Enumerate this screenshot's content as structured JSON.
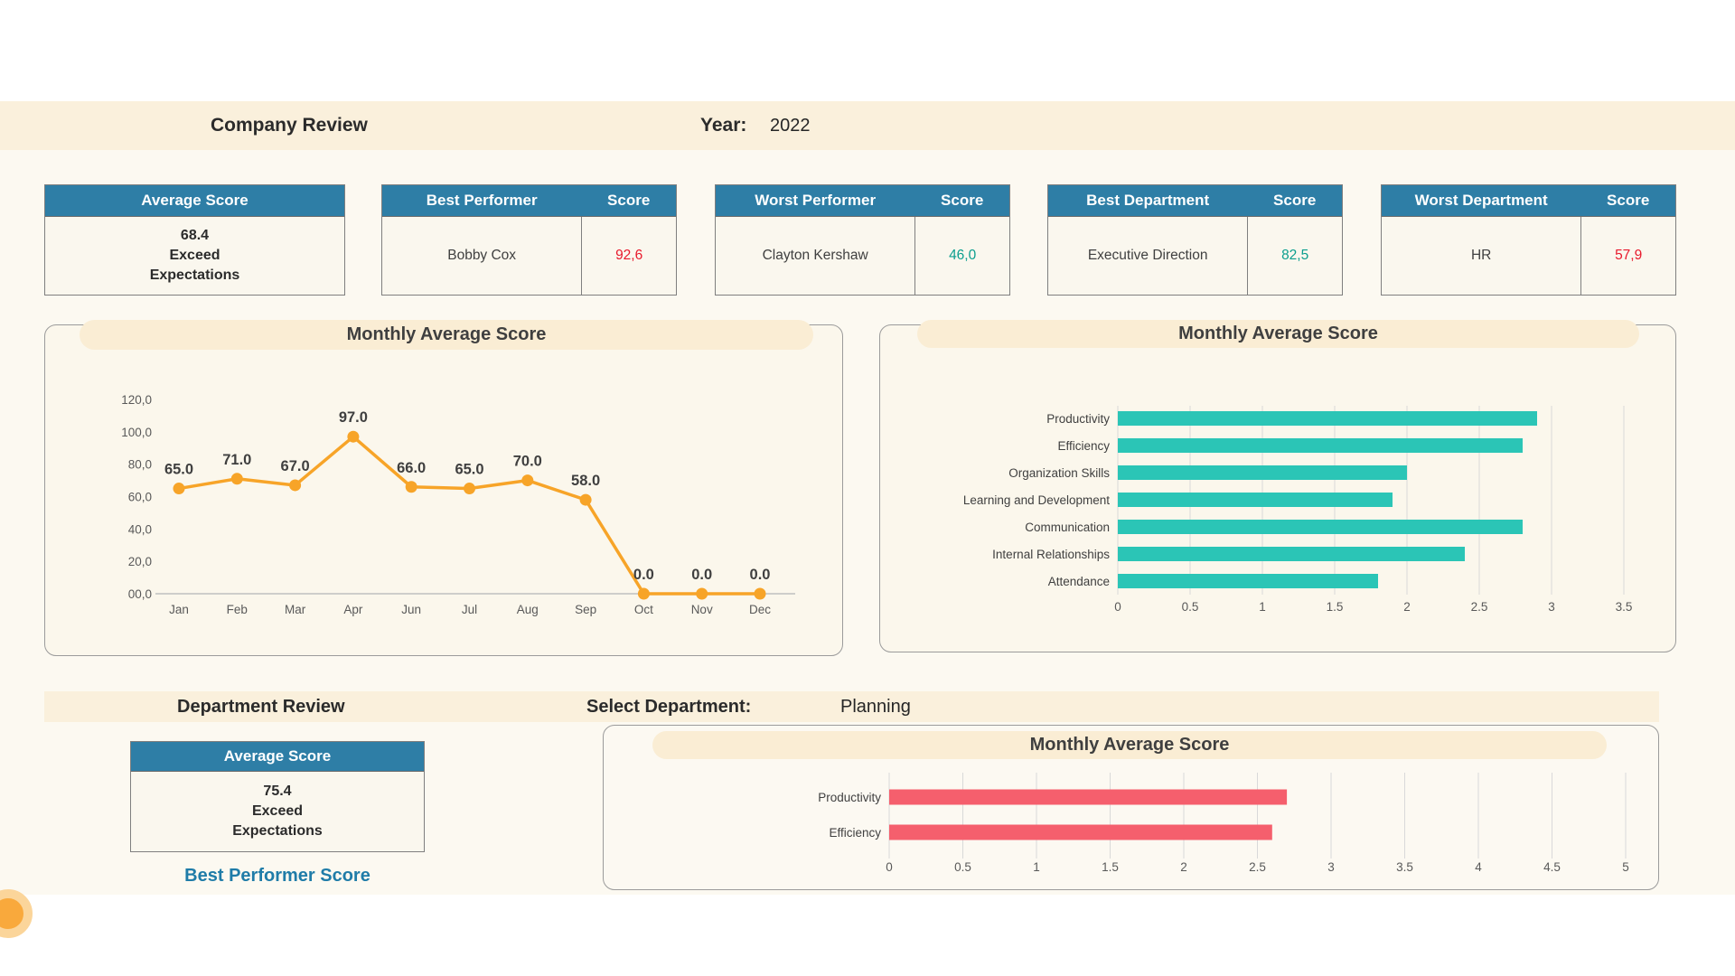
{
  "page": {
    "band_color": "#FAF0DC",
    "background": "#FCF9F1",
    "header_teal": "#2E7EA6",
    "score_red": "#E8192C",
    "score_teal": "#0B9E8E"
  },
  "header": {
    "title": "Company Review",
    "year_label": "Year:",
    "year_value": "2022"
  },
  "kpi_cards": [
    {
      "header": "Average Score",
      "value": "68.4",
      "rating": "Exceed Expectations"
    },
    {
      "header": "Best Performer",
      "score_header": "Score",
      "name": "Bobby Cox",
      "score": "92,6",
      "score_color": "#E8192C"
    },
    {
      "header": "Worst Performer",
      "score_header": "Score",
      "name": "Clayton Kershaw",
      "score": "46,0",
      "score_color": "#0B9E8E"
    },
    {
      "header": "Best Department",
      "score_header": "Score",
      "name": "Executive Direction",
      "score": "82,5",
      "score_color": "#0B9E8E"
    },
    {
      "header": "Worst Department",
      "score_header": "Score",
      "name": "HR",
      "score": "57,9",
      "score_color": "#E8192C"
    }
  ],
  "department_section": {
    "title": "Department Review",
    "select_label": "Select Department:",
    "selected_department": "Planning",
    "average_card": {
      "header": "Average Score",
      "value": "75.4",
      "rating": "Exceed Expectations"
    },
    "footer_link": "Best Performer Score"
  },
  "chart_data": [
    {
      "id": "company-monthly-line",
      "type": "line",
      "title": "Monthly Average Score",
      "x": [
        "Jan",
        "Feb",
        "Mar",
        "Apr",
        "Jun",
        "Jul",
        "Aug",
        "Sep",
        "Oct",
        "Nov",
        "Dec"
      ],
      "values": [
        65,
        71,
        67,
        97,
        66,
        65,
        70,
        58,
        0,
        0,
        0
      ],
      "point_labels": [
        "65.0",
        "71.0",
        "67.0",
        "97.0",
        "66.0",
        "65.0",
        "70.0",
        "58.0",
        "0.0",
        "0.0",
        "0.0"
      ],
      "y_ticks": [
        "120,0",
        "100,0",
        "80,0",
        "60,0",
        "40,0",
        "20,0",
        "00,0"
      ],
      "ylim": [
        0,
        120
      ],
      "line_color": "#F7A428",
      "grid": false,
      "legend": "none"
    },
    {
      "id": "company-criteria-bars",
      "type": "bar",
      "orientation": "horizontal",
      "title": "Monthly Average Score",
      "categories": [
        "Productivity",
        "Efficiency",
        "Organization Skills",
        "Learning and Development",
        "Communication",
        "Internal Relationships",
        "Attendance"
      ],
      "values": [
        2.9,
        2.8,
        2.0,
        1.9,
        2.8,
        2.4,
        1.8
      ],
      "x_ticks": [
        "0",
        "0.5",
        "1",
        "1.5",
        "2",
        "2.5",
        "3",
        "3.5"
      ],
      "xlim": [
        0,
        3.9
      ],
      "bar_color": "#2BC5B6",
      "grid": true,
      "legend": "none"
    },
    {
      "id": "department-criteria-bars",
      "type": "bar",
      "orientation": "horizontal",
      "title": "Monthly Average Score",
      "categories": [
        "Productivity",
        "Efficiency"
      ],
      "values": [
        2.7,
        2.6
      ],
      "x_ticks": [
        "0",
        "0.5",
        "1",
        "1.5",
        "2",
        "2.5",
        "3",
        "3.5",
        "4",
        "4.5",
        "5"
      ],
      "xlim": [
        0,
        5.1
      ],
      "bar_color": "#F55F6D",
      "grid": true,
      "legend": "none"
    }
  ]
}
